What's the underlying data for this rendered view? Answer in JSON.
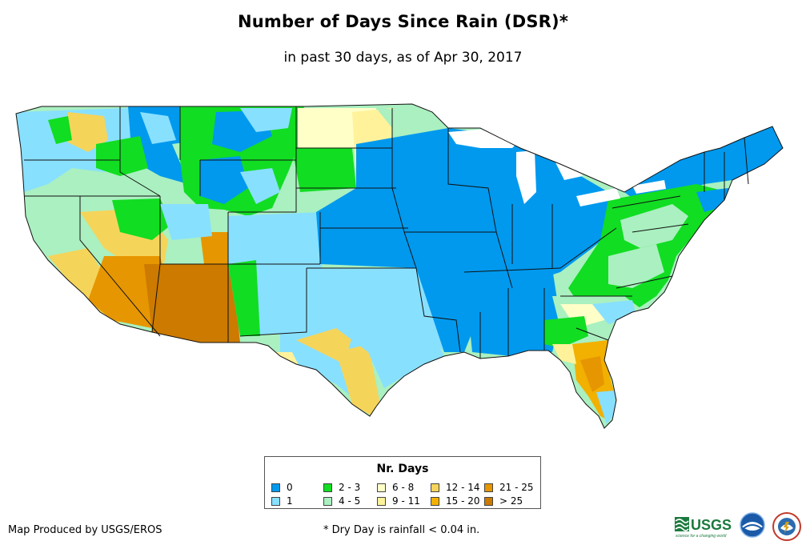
{
  "header": {
    "title": "Number of Days Since Rain (DSR)*",
    "subtitle": "in past 30 days, as of Apr 30, 2017"
  },
  "legend": {
    "title": "Nr. Days",
    "items": [
      {
        "label": "0",
        "color": "#0099ee"
      },
      {
        "label": "1",
        "color": "#88e0ff"
      },
      {
        "label": "2 - 3",
        "color": "#11dd22"
      },
      {
        "label": "4 - 5",
        "color": "#aaf0c0"
      },
      {
        "label": "6 - 8",
        "color": "#ffffc8"
      },
      {
        "label": "9 - 11",
        "color": "#fff29a"
      },
      {
        "label": "12 - 14",
        "color": "#f5d45a"
      },
      {
        "label": "15 - 20",
        "color": "#f2b000"
      },
      {
        "label": "21 - 25",
        "color": "#e69600"
      },
      {
        "label": "> 25",
        "color": "#cc7a00"
      }
    ]
  },
  "footer": {
    "credit": "Map Produced by USGS/EROS",
    "footnote": "* Dry Day is rainfall < 0.04 in.",
    "logo_text": "USGS",
    "logo_tagline": "science for a changing world"
  },
  "logos": [
    "usgs-logo",
    "noaa-logo",
    "national-weather-service-logo"
  ]
}
